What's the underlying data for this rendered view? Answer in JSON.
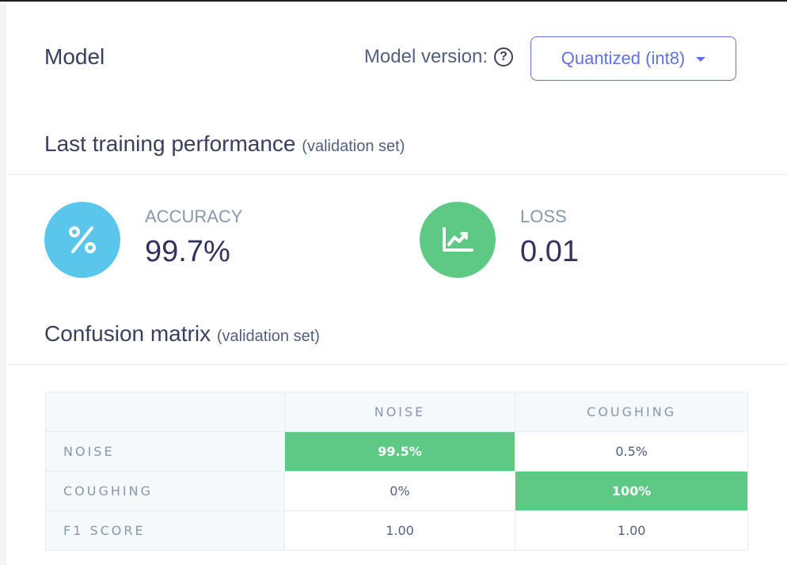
{
  "header": {
    "title": "Model",
    "version_label": "Model version:",
    "help_icon": "question-circle-icon",
    "version_selected": "Quantized (int8)"
  },
  "performance": {
    "title": "Last training performance",
    "subtitle": "(validation set)",
    "accuracy": {
      "label": "ACCURACY",
      "value": "99.7%",
      "icon": "percent-icon",
      "color": "#5bc6eb"
    },
    "loss": {
      "label": "LOSS",
      "value": "0.01",
      "icon": "chart-line-icon",
      "color": "#5dc985"
    }
  },
  "confusion": {
    "title": "Confusion matrix",
    "subtitle": "(validation set)",
    "columns": [
      "NOISE",
      "COUGHING"
    ],
    "rows": [
      {
        "label": "NOISE",
        "values": [
          "99.5%",
          "0.5%"
        ]
      },
      {
        "label": "COUGHING",
        "values": [
          "0%",
          "100%"
        ]
      },
      {
        "label": "F1 SCORE",
        "values": [
          "1.00",
          "1.00"
        ]
      }
    ],
    "highlight_color": "#5dc985"
  }
}
